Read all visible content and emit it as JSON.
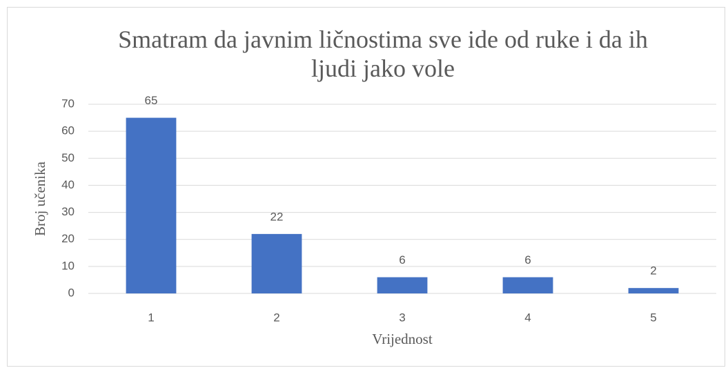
{
  "chart_data": {
    "type": "bar",
    "title": "Smatram da javnim ličnostima sve ide od ruke i da ih ljudi jako vole",
    "x_label": "Vrijednost",
    "y_label": "Broj učenika",
    "categories": [
      "1",
      "2",
      "3",
      "4",
      "5"
    ],
    "values": [
      65,
      22,
      6,
      6,
      2
    ],
    "color": "#4472c4",
    "ylim": [
      0,
      70
    ],
    "yticks": [
      0,
      10,
      20,
      30,
      40,
      50,
      60,
      70
    ],
    "grid": true
  }
}
